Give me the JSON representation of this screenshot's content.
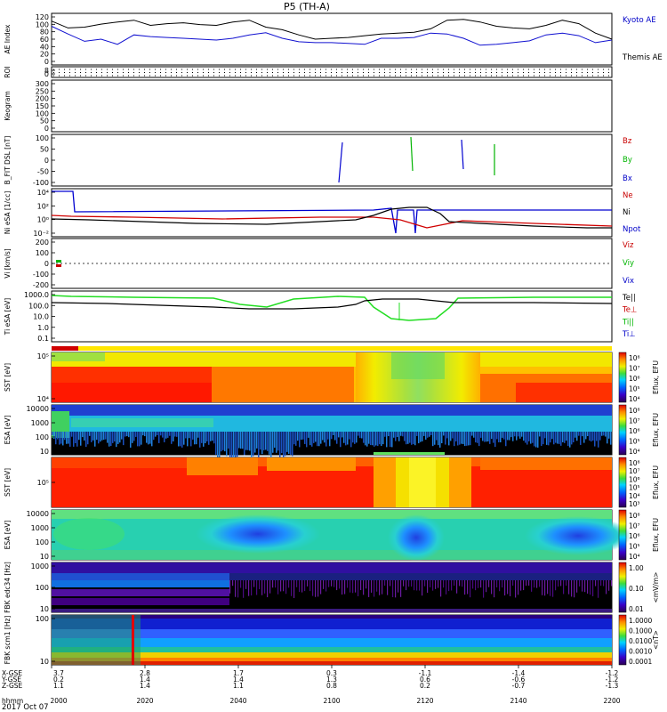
{
  "title": "P5 (TH-A)",
  "date_label": "2017 Oct 07",
  "chart_data": {
    "type": "multi-panel",
    "x": {
      "ticks": [
        "2000",
        "2020",
        "2040",
        "2100",
        "2120",
        "2140",
        "2200"
      ],
      "hhmm_label": "hhmm",
      "ephemeris": [
        {
          "label": "X-GSE",
          "values": [
            "3.7",
            "2.8",
            "1.7",
            "0.3",
            "-1.1",
            "-1.4",
            "-1.2"
          ]
        },
        {
          "label": "Y-GSE",
          "values": [
            "0.2",
            "1.4",
            "1.4",
            "1.3",
            "0.6",
            "-0.6",
            "-1.2"
          ]
        },
        {
          "label": "Z-GSE",
          "values": [
            "1.1",
            "1.4",
            "1.1",
            "0.8",
            "0.2",
            "-0.7",
            "-1.3"
          ]
        }
      ]
    },
    "panels": [
      {
        "id": "ae",
        "ylabel": "AE Index",
        "yticks": [
          "120",
          "100",
          "80",
          "60",
          "40",
          "20",
          "0"
        ],
        "legend": [
          {
            "text": "Kyoto AE",
            "color": "#0000c8"
          },
          {
            "text": "Themis AE",
            "color": "#000000"
          }
        ],
        "series": [
          {
            "name": "Kyoto AE",
            "color": "#1010d0",
            "values": [
              90,
              72,
              55,
              60,
              48,
              70,
              66,
              64,
              62,
              60,
              58,
              62,
              70,
              75,
              62,
              54,
              52,
              52,
              50,
              48,
              62,
              62,
              64,
              74,
              72,
              62,
              46,
              48,
              52,
              56,
              70,
              74,
              68,
              52,
              58
            ]
          },
          {
            "name": "Themis AE",
            "color": "#000000",
            "values": [
              102,
              86,
              88,
              95,
              100,
              104,
              92,
              96,
              98,
              94,
              92,
              100,
              104,
              88,
              82,
              70,
              60,
              62,
              64,
              68,
              72,
              74,
              76,
              84,
              104,
              106,
              100,
              90,
              86,
              84,
              92,
              104,
              96,
              74,
              60
            ]
          }
        ]
      },
      {
        "id": "roi",
        "ylabel": "ROI",
        "yticks": [
          "8",
          "0"
        ]
      },
      {
        "id": "keogram",
        "ylabel": "Keogram",
        "yticks": [
          "300",
          "250",
          "200",
          "150",
          "100",
          "50",
          "0"
        ]
      },
      {
        "id": "bfit",
        "ylabel": "B_FIT DSL [nT]",
        "yticks": [
          "100",
          "50",
          "0",
          "-50",
          "-100"
        ],
        "legend": [
          {
            "text": "Bz",
            "color": "#c80000"
          },
          {
            "text": "By",
            "color": "#00b400"
          },
          {
            "text": "Bx",
            "color": "#0000c8"
          }
        ]
      },
      {
        "id": "ni",
        "ylabel": "Ni eSA [1/cc]",
        "yticks": [
          "10⁴",
          "10²",
          "10⁰",
          "10⁻²"
        ],
        "legend": [
          {
            "text": "Ne",
            "color": "#c80000"
          },
          {
            "text": "Ni",
            "color": "#000000"
          },
          {
            "text": "Npot",
            "color": "#0000c8"
          }
        ]
      },
      {
        "id": "vi",
        "ylabel": "Vi [km/s]",
        "yticks": [
          "200",
          "100",
          "0",
          "-100",
          "-200"
        ],
        "legend": [
          {
            "text": "Viz",
            "color": "#c80000"
          },
          {
            "text": "Viy",
            "color": "#00b400"
          },
          {
            "text": "Vix",
            "color": "#0000c8"
          }
        ]
      },
      {
        "id": "ti",
        "ylabel": "Ti eSA [eV]",
        "yticks": [
          "1000.0",
          "100.0",
          "10.0",
          "1.0",
          "0.1"
        ],
        "legend": [
          {
            "text": "Te||",
            "color": "#000000"
          },
          {
            "text": "Te⊥",
            "color": "#c80000"
          },
          {
            "text": "Ti||",
            "color": "#00b400"
          },
          {
            "text": "Ti⊥",
            "color": "#0000c8"
          }
        ]
      },
      {
        "id": "sst_e",
        "ylabel": "SST [eV]",
        "yticks": [
          "10⁵",
          "10⁴"
        ],
        "cbar_label": "Eflux, EFU",
        "cbar_ticks": [
          "10⁸",
          "10⁷",
          "10⁶",
          "10⁵",
          "10⁴"
        ]
      },
      {
        "id": "esa_e",
        "ylabel": "ESA [eV]",
        "yticks": [
          "10000",
          "1000",
          "100",
          "10"
        ],
        "cbar_label": "Eflux, EFU",
        "cbar_ticks": [
          "10⁸",
          "10⁷",
          "10⁶",
          "10⁵",
          "10⁴"
        ]
      },
      {
        "id": "sst_i",
        "ylabel": "SST [eV]",
        "yticks": [
          "10⁵"
        ],
        "cbar_label": "Eflux, EFU",
        "cbar_ticks": [
          "10⁸",
          "10⁷",
          "10⁶",
          "10⁵",
          "10⁴",
          "10³"
        ]
      },
      {
        "id": "esa_i",
        "ylabel": "ESA [eV]",
        "yticks": [
          "10000",
          "1000",
          "100",
          "10"
        ],
        "cbar_label": "Eflux, EFU",
        "cbar_ticks": [
          "10⁸",
          "10⁷",
          "10⁶",
          "10⁵",
          "10⁴"
        ]
      },
      {
        "id": "fbk1",
        "ylabel": "FBK edc34 [Hz]",
        "yticks": [
          "1000",
          "100",
          "10"
        ],
        "cbar_label": "<mV/m>",
        "cbar_ticks": [
          "1.00",
          "0.10",
          "0.01"
        ]
      },
      {
        "id": "fbk2",
        "ylabel": "FBK scm1 [Hz]",
        "yticks": [
          "100",
          "10"
        ],
        "cbar_label": "<nT>",
        "cbar_ticks": [
          "1.0000",
          "0.1000",
          "0.0100",
          "0.0010",
          "0.0001"
        ]
      }
    ]
  }
}
